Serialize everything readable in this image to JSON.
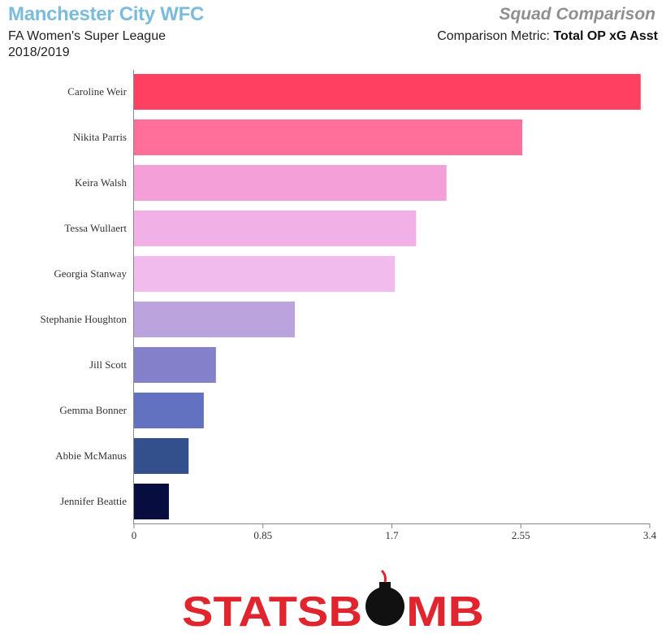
{
  "header": {
    "team": "Manchester City WFC",
    "league": "FA Women's Super League",
    "season": "2018/2019",
    "heading": "Squad Comparison",
    "metric_label": "Comparison Metric:",
    "metric_value": "Total OP xG Asst"
  },
  "logo": {
    "text_left": "STATSB",
    "text_right": "MB",
    "icon": "bomb-icon",
    "color": "#e0252e"
  },
  "chart_data": {
    "type": "bar",
    "orientation": "horizontal",
    "categories": [
      "Caroline Weir",
      "Nikita Parris",
      "Keira Walsh",
      "Tessa Wullaert",
      "Georgia Stanway",
      "Stephanie Houghton",
      "Jill Scott",
      "Gemma Bonner",
      "Abbie McManus",
      "Jennifer Beattie"
    ],
    "values": [
      3.34,
      2.56,
      2.06,
      1.86,
      1.72,
      1.06,
      0.54,
      0.46,
      0.36,
      0.23
    ],
    "colors": [
      "#ff4060",
      "#ff6f99",
      "#f49fd8",
      "#f1b0e6",
      "#f1bbee",
      "#bba3dd",
      "#8480c9",
      "#6272c0",
      "#34508c",
      "#070d3e"
    ],
    "xlim": [
      0,
      3.4
    ],
    "xticks": [
      "0",
      "0.85",
      "1.7",
      "2.55",
      "3.4"
    ],
    "grid": false
  }
}
